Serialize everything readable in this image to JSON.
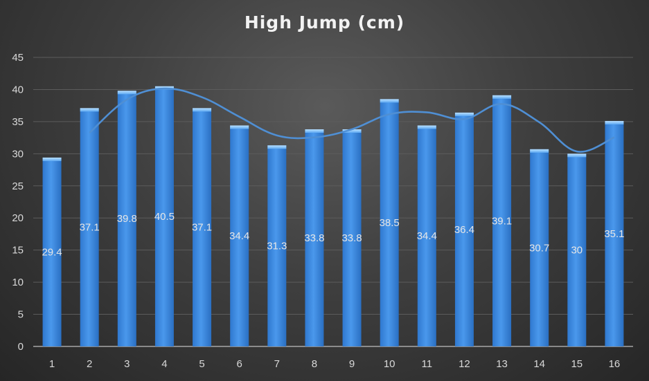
{
  "chart_data": {
    "type": "bar",
    "title": "High Jump (cm)",
    "xlabel": "",
    "ylabel": "",
    "categories": [
      "1",
      "2",
      "3",
      "4",
      "5",
      "6",
      "7",
      "8",
      "9",
      "10",
      "11",
      "12",
      "13",
      "14",
      "15",
      "16"
    ],
    "series": [
      {
        "values": [
          29.4,
          37.1,
          39.8,
          40.5,
          37.1,
          34.4,
          31.3,
          33.8,
          33.8,
          38.5,
          34.4,
          36.4,
          39.1,
          30.7,
          30,
          35.1
        ],
        "data_labels": [
          "29.4",
          "37.1",
          "39.8",
          "40.5",
          "37.1",
          "34.4",
          "31.3",
          "33.8",
          "33.8",
          "38.5",
          "34.4",
          "36.4",
          "39.1",
          "30.7",
          "30",
          "35.1"
        ],
        "color": "#3f8fe6"
      }
    ],
    "trendline": {
      "type": "moving_average",
      "period": 2,
      "color": "#4f8fd4"
    },
    "ylim": [
      0,
      45
    ],
    "yticks": [
      "0",
      "5",
      "10",
      "15",
      "20",
      "25",
      "30",
      "35",
      "40",
      "45"
    ],
    "grid": true,
    "legend": "none",
    "colors": {
      "background": "#3a3a3a",
      "bar": "#3f8fe6",
      "trendline": "#4f8fd4",
      "text": "#d9d9d9"
    }
  }
}
